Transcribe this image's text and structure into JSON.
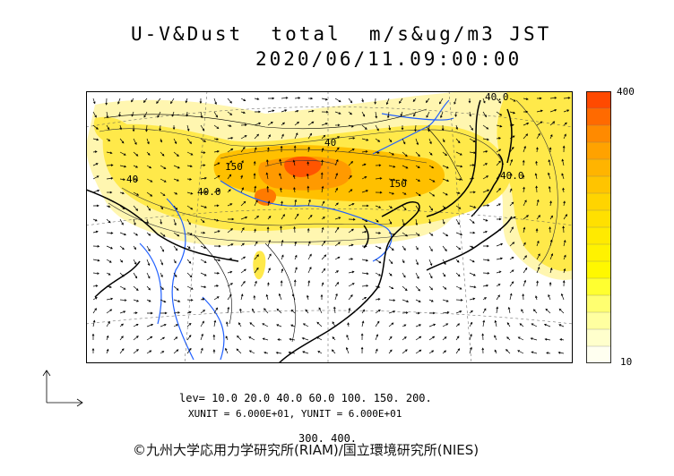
{
  "header": {
    "title_line1": "U-V&Dust  total  m/s&ug/m3 JST",
    "title_line2": "2020/06/11.09:00:00"
  },
  "legend": {
    "max_label": "400",
    "min_label": "10",
    "colors": [
      "#ff4a00",
      "#ff6a00",
      "#ff8a00",
      "#ffa200",
      "#ffb400",
      "#ffc400",
      "#ffd400",
      "#ffe000",
      "#ffea00",
      "#fff200",
      "#fff800",
      "#ffff30",
      "#ffff70",
      "#ffffa0",
      "#ffffcc",
      "#fffff0"
    ]
  },
  "map": {
    "contour_labels": [
      {
        "text": "40.0",
        "x": 555,
        "y": 110
      },
      {
        "text": "40",
        "x": 366,
        "y": 162
      },
      {
        "text": "40",
        "x": 143,
        "y": 203
      },
      {
        "text": "40.0",
        "x": 222,
        "y": 216
      },
      {
        "text": "150",
        "x": 437,
        "y": 208
      },
      {
        "text": "40.0",
        "x": 559,
        "y": 198
      },
      {
        "text": "150",
        "x": 254,
        "y": 188
      }
    ]
  },
  "footer": {
    "levels_line1": "lev= 10.0 20.0 40.0 60.0 100. 150. 200.",
    "levels_line2": "300. 400.",
    "units": "XUNIT = 6.000E+01, YUNIT = 6.000E+01",
    "credit": "©九州大学応用力学研究所(RIAM)/国立環境研究所(NIES)"
  }
}
